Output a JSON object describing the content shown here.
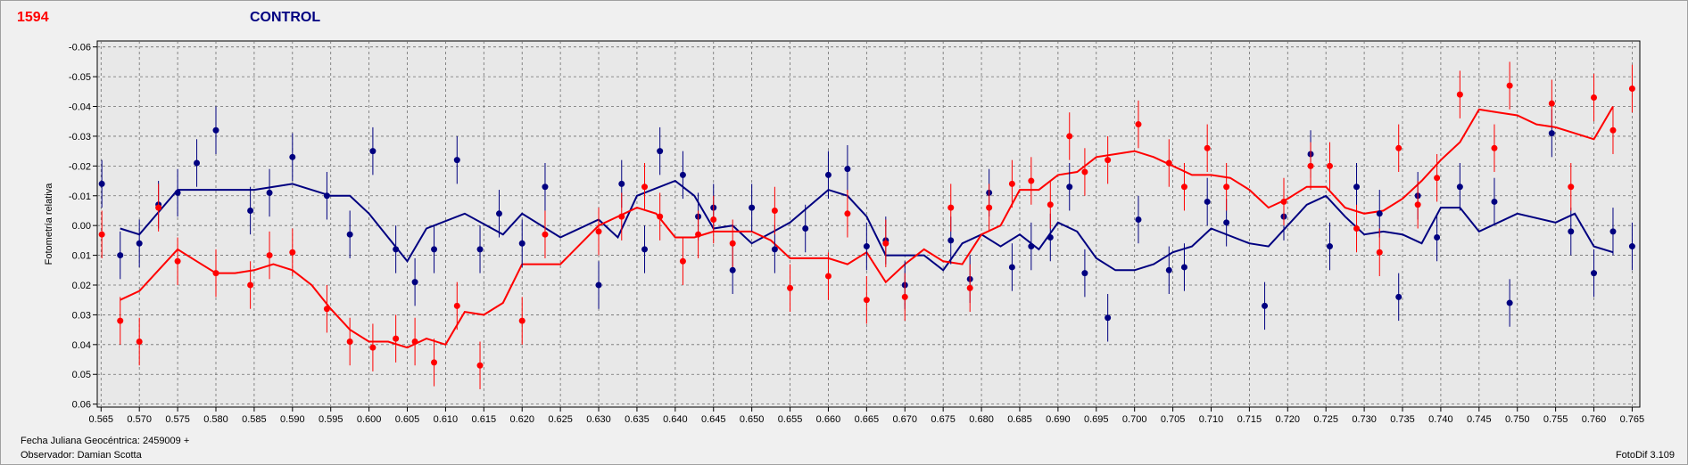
{
  "header": {
    "object_id": "1594",
    "title": "CONTROL"
  },
  "footer": {
    "jd_label": "Fecha Juliana Geocéntrica: 2459009 +",
    "observer_label": "Observador: Damian Scotta",
    "software": "FotoDif 3.109"
  },
  "colors": {
    "target": "#ff0000",
    "control": "#000080",
    "grid": "#6e6e6e",
    "plot_bg": "#e8e8e8"
  },
  "chart_data": {
    "type": "scatter",
    "title": "CONTROL",
    "xlabel": "",
    "ylabel": "Fotometría relativa",
    "xlim": [
      0.5645,
      0.766
    ],
    "ylim": [
      -0.062,
      0.061
    ],
    "y_inverted": true,
    "grid": true,
    "x_ticks": [
      0.565,
      0.57,
      0.575,
      0.58,
      0.585,
      0.59,
      0.595,
      0.6,
      0.605,
      0.61,
      0.615,
      0.62,
      0.625,
      0.63,
      0.635,
      0.64,
      0.645,
      0.65,
      0.655,
      0.66,
      0.665,
      0.67,
      0.675,
      0.68,
      0.685,
      0.69,
      0.695,
      0.7,
      0.705,
      0.71,
      0.715,
      0.72,
      0.725,
      0.73,
      0.735,
      0.74,
      0.745,
      0.75,
      0.755,
      0.76,
      0.765
    ],
    "x_tick_labels": [
      "0.565",
      "0.570",
      "0.575",
      "0.580",
      "0.585",
      "0.590",
      "0.595",
      "0.600",
      "0.605",
      "0.610",
      "0.615",
      "0.620",
      "0.625",
      "0.630",
      "0.635",
      "0.640",
      "0.645",
      "0.650",
      "0.655",
      "0.660",
      "0.665",
      "0.670",
      "0.675",
      "0.680",
      "0.685",
      "0.690",
      "0.695",
      "0.700",
      "0.705",
      "0.710",
      "0.715",
      "0.720",
      "0.725",
      "0.730",
      "0.735",
      "0.740",
      "0.745",
      "0.750",
      "0.755",
      "0.760",
      "0.765"
    ],
    "y_ticks": [
      -0.06,
      -0.05,
      -0.04,
      -0.03,
      -0.02,
      -0.01,
      0.0,
      0.01,
      0.02,
      0.03,
      0.04,
      0.05,
      0.06
    ],
    "y_tick_labels": [
      "-0.06",
      "-0.05",
      "-0.04",
      "-0.03",
      "-0.02",
      "-0.01",
      "0.00",
      "0.01",
      "0.02",
      "0.03",
      "0.04",
      "0.05",
      "0.06"
    ],
    "error": 0.008,
    "series": [
      {
        "color": "#000080",
        "points": [
          [
            0.5651,
            -0.014
          ],
          [
            0.5675,
            0.01
          ],
          [
            0.57,
            0.006
          ],
          [
            0.5725,
            -0.007
          ],
          [
            0.575,
            -0.011
          ],
          [
            0.5775,
            -0.021
          ],
          [
            0.58,
            -0.032
          ],
          [
            0.5845,
            -0.005
          ],
          [
            0.587,
            -0.011
          ],
          [
            0.59,
            -0.023
          ],
          [
            0.5945,
            -0.01
          ],
          [
            0.5975,
            0.003
          ],
          [
            0.6005,
            -0.025
          ],
          [
            0.6035,
            0.008
          ],
          [
            0.606,
            0.019
          ],
          [
            0.6085,
            0.008
          ],
          [
            0.6115,
            -0.022
          ],
          [
            0.6145,
            0.008
          ],
          [
            0.617,
            -0.004
          ],
          [
            0.62,
            0.006
          ],
          [
            0.623,
            -0.013
          ],
          [
            0.63,
            0.02
          ],
          [
            0.633,
            -0.014
          ],
          [
            0.636,
            0.008
          ],
          [
            0.638,
            -0.025
          ],
          [
            0.641,
            -0.017
          ],
          [
            0.643,
            -0.003
          ],
          [
            0.645,
            -0.006
          ],
          [
            0.6475,
            0.015
          ],
          [
            0.65,
            -0.006
          ],
          [
            0.653,
            0.008
          ],
          [
            0.657,
            0.001
          ],
          [
            0.66,
            -0.017
          ],
          [
            0.6625,
            -0.019
          ],
          [
            0.665,
            0.007
          ],
          [
            0.6675,
            0.005
          ],
          [
            0.67,
            0.02
          ],
          [
            0.676,
            0.005
          ],
          [
            0.6785,
            0.018
          ],
          [
            0.681,
            -0.011
          ],
          [
            0.684,
            0.014
          ],
          [
            0.6865,
            0.007
          ],
          [
            0.689,
            0.004
          ],
          [
            0.6915,
            -0.013
          ],
          [
            0.6935,
            0.016
          ],
          [
            0.6965,
            0.031
          ],
          [
            0.7005,
            -0.002
          ],
          [
            0.7045,
            0.015
          ],
          [
            0.7065,
            0.014
          ],
          [
            0.7095,
            -0.008
          ],
          [
            0.712,
            -0.001
          ],
          [
            0.717,
            0.027
          ],
          [
            0.7195,
            -0.003
          ],
          [
            0.723,
            -0.024
          ],
          [
            0.7255,
            0.007
          ],
          [
            0.729,
            -0.013
          ],
          [
            0.732,
            -0.004
          ],
          [
            0.7345,
            0.024
          ],
          [
            0.737,
            -0.01
          ],
          [
            0.7395,
            0.004
          ],
          [
            0.7425,
            -0.013
          ],
          [
            0.747,
            -0.008
          ],
          [
            0.749,
            0.026
          ],
          [
            0.7545,
            -0.031
          ],
          [
            0.757,
            0.002
          ],
          [
            0.76,
            0.016
          ],
          [
            0.7625,
            0.002
          ],
          [
            0.765,
            0.007
          ]
        ],
        "line": [
          [
            0.5675,
            0.001
          ],
          [
            0.57,
            0.003
          ],
          [
            0.575,
            -0.012
          ],
          [
            0.58,
            -0.012
          ],
          [
            0.585,
            -0.012
          ],
          [
            0.5875,
            -0.013
          ],
          [
            0.59,
            -0.014
          ],
          [
            0.595,
            -0.01
          ],
          [
            0.5975,
            -0.01
          ],
          [
            0.6,
            -0.004
          ],
          [
            0.605,
            0.012
          ],
          [
            0.6075,
            0.001
          ],
          [
            0.6125,
            -0.004
          ],
          [
            0.6175,
            0.003
          ],
          [
            0.62,
            -0.004
          ],
          [
            0.625,
            0.004
          ],
          [
            0.63,
            -0.002
          ],
          [
            0.6325,
            0.004
          ],
          [
            0.635,
            -0.01
          ],
          [
            0.64,
            -0.015
          ],
          [
            0.6425,
            -0.01
          ],
          [
            0.645,
            0.001
          ],
          [
            0.6475,
            0.0
          ],
          [
            0.65,
            0.006
          ],
          [
            0.655,
            -0.001
          ],
          [
            0.66,
            -0.012
          ],
          [
            0.6625,
            -0.01
          ],
          [
            0.665,
            -0.003
          ],
          [
            0.6675,
            0.01
          ],
          [
            0.6725,
            0.01
          ],
          [
            0.675,
            0.015
          ],
          [
            0.6775,
            0.006
          ],
          [
            0.68,
            0.003
          ],
          [
            0.6825,
            0.007
          ],
          [
            0.685,
            0.003
          ],
          [
            0.6875,
            0.008
          ],
          [
            0.69,
            -0.001
          ],
          [
            0.6925,
            0.002
          ],
          [
            0.695,
            0.011
          ],
          [
            0.6975,
            0.015
          ],
          [
            0.7,
            0.015
          ],
          [
            0.7025,
            0.013
          ],
          [
            0.705,
            0.009
          ],
          [
            0.7075,
            0.007
          ],
          [
            0.71,
            0.001
          ],
          [
            0.715,
            0.006
          ],
          [
            0.7175,
            0.007
          ],
          [
            0.7225,
            -0.007
          ],
          [
            0.725,
            -0.01
          ],
          [
            0.7275,
            -0.003
          ],
          [
            0.73,
            0.003
          ],
          [
            0.7325,
            0.002
          ],
          [
            0.735,
            0.003
          ],
          [
            0.7375,
            0.006
          ],
          [
            0.74,
            -0.006
          ],
          [
            0.7425,
            -0.006
          ],
          [
            0.745,
            0.002
          ],
          [
            0.75,
            -0.004
          ],
          [
            0.755,
            -0.001
          ],
          [
            0.7575,
            -0.004
          ],
          [
            0.76,
            0.007
          ],
          [
            0.7625,
            0.009
          ]
        ]
      },
      {
        "color": "#ff0000",
        "points": [
          [
            0.5651,
            0.003
          ],
          [
            0.5675,
            0.032
          ],
          [
            0.57,
            0.039
          ],
          [
            0.5725,
            -0.006
          ],
          [
            0.575,
            0.012
          ],
          [
            0.58,
            0.016
          ],
          [
            0.5845,
            0.02
          ],
          [
            0.587,
            0.01
          ],
          [
            0.59,
            0.009
          ],
          [
            0.5945,
            0.028
          ],
          [
            0.5975,
            0.039
          ],
          [
            0.6005,
            0.041
          ],
          [
            0.6035,
            0.038
          ],
          [
            0.606,
            0.039
          ],
          [
            0.6085,
            0.046
          ],
          [
            0.6115,
            0.027
          ],
          [
            0.6145,
            0.047
          ],
          [
            0.62,
            0.032
          ],
          [
            0.623,
            0.003
          ],
          [
            0.63,
            0.002
          ],
          [
            0.633,
            -0.003
          ],
          [
            0.636,
            -0.013
          ],
          [
            0.638,
            -0.003
          ],
          [
            0.641,
            0.012
          ],
          [
            0.643,
            0.003
          ],
          [
            0.645,
            -0.002
          ],
          [
            0.6475,
            0.006
          ],
          [
            0.653,
            -0.005
          ],
          [
            0.655,
            0.021
          ],
          [
            0.66,
            0.017
          ],
          [
            0.6625,
            -0.004
          ],
          [
            0.665,
            0.025
          ],
          [
            0.6675,
            0.006
          ],
          [
            0.67,
            0.024
          ],
          [
            0.676,
            -0.006
          ],
          [
            0.6785,
            0.021
          ],
          [
            0.681,
            -0.006
          ],
          [
            0.684,
            -0.014
          ],
          [
            0.6865,
            -0.015
          ],
          [
            0.689,
            -0.007
          ],
          [
            0.6915,
            -0.03
          ],
          [
            0.6935,
            -0.018
          ],
          [
            0.6965,
            -0.022
          ],
          [
            0.7005,
            -0.034
          ],
          [
            0.7045,
            -0.021
          ],
          [
            0.7065,
            -0.013
          ],
          [
            0.7095,
            -0.026
          ],
          [
            0.712,
            -0.013
          ],
          [
            0.7195,
            -0.008
          ],
          [
            0.723,
            -0.02
          ],
          [
            0.7255,
            -0.02
          ],
          [
            0.729,
            0.001
          ],
          [
            0.732,
            0.009
          ],
          [
            0.7345,
            -0.026
          ],
          [
            0.737,
            -0.007
          ],
          [
            0.7395,
            -0.016
          ],
          [
            0.7425,
            -0.044
          ],
          [
            0.747,
            -0.026
          ],
          [
            0.749,
            -0.047
          ],
          [
            0.7545,
            -0.041
          ],
          [
            0.757,
            -0.013
          ],
          [
            0.76,
            -0.043
          ],
          [
            0.7625,
            -0.032
          ],
          [
            0.765,
            -0.046
          ]
        ],
        "line": [
          [
            0.5675,
            0.025
          ],
          [
            0.57,
            0.022
          ],
          [
            0.575,
            0.008
          ],
          [
            0.5775,
            0.012
          ],
          [
            0.58,
            0.016
          ],
          [
            0.5825,
            0.016
          ],
          [
            0.585,
            0.015
          ],
          [
            0.5875,
            0.013
          ],
          [
            0.59,
            0.015
          ],
          [
            0.5925,
            0.02
          ],
          [
            0.595,
            0.028
          ],
          [
            0.5975,
            0.035
          ],
          [
            0.6,
            0.039
          ],
          [
            0.6025,
            0.039
          ],
          [
            0.605,
            0.041
          ],
          [
            0.6075,
            0.038
          ],
          [
            0.61,
            0.04
          ],
          [
            0.6125,
            0.029
          ],
          [
            0.615,
            0.03
          ],
          [
            0.6175,
            0.026
          ],
          [
            0.62,
            0.013
          ],
          [
            0.6225,
            0.013
          ],
          [
            0.625,
            0.013
          ],
          [
            0.63,
            0.0
          ],
          [
            0.635,
            -0.006
          ],
          [
            0.6375,
            -0.004
          ],
          [
            0.64,
            0.004
          ],
          [
            0.6425,
            0.004
          ],
          [
            0.645,
            0.002
          ],
          [
            0.6475,
            0.002
          ],
          [
            0.65,
            0.002
          ],
          [
            0.6525,
            0.005
          ],
          [
            0.655,
            0.011
          ],
          [
            0.6575,
            0.011
          ],
          [
            0.66,
            0.011
          ],
          [
            0.6625,
            0.013
          ],
          [
            0.665,
            0.009
          ],
          [
            0.6675,
            0.019
          ],
          [
            0.67,
            0.013
          ],
          [
            0.6725,
            0.008
          ],
          [
            0.675,
            0.012
          ],
          [
            0.6775,
            0.013
          ],
          [
            0.68,
            0.003
          ],
          [
            0.6825,
            0.0
          ],
          [
            0.685,
            -0.012
          ],
          [
            0.6875,
            -0.012
          ],
          [
            0.69,
            -0.017
          ],
          [
            0.6925,
            -0.018
          ],
          [
            0.695,
            -0.023
          ],
          [
            0.6975,
            -0.024
          ],
          [
            0.7,
            -0.025
          ],
          [
            0.7025,
            -0.023
          ],
          [
            0.705,
            -0.02
          ],
          [
            0.7075,
            -0.017
          ],
          [
            0.71,
            -0.017
          ],
          [
            0.7125,
            -0.016
          ],
          [
            0.715,
            -0.012
          ],
          [
            0.7175,
            -0.006
          ],
          [
            0.72,
            -0.009
          ],
          [
            0.7225,
            -0.013
          ],
          [
            0.725,
            -0.013
          ],
          [
            0.7275,
            -0.006
          ],
          [
            0.73,
            -0.004
          ],
          [
            0.7325,
            -0.005
          ],
          [
            0.735,
            -0.009
          ],
          [
            0.7375,
            -0.015
          ],
          [
            0.74,
            -0.022
          ],
          [
            0.7425,
            -0.028
          ],
          [
            0.745,
            -0.039
          ],
          [
            0.7475,
            -0.038
          ],
          [
            0.75,
            -0.037
          ],
          [
            0.7525,
            -0.034
          ],
          [
            0.755,
            -0.033
          ],
          [
            0.7575,
            -0.031
          ],
          [
            0.76,
            -0.029
          ],
          [
            0.7625,
            -0.04
          ]
        ]
      }
    ]
  }
}
